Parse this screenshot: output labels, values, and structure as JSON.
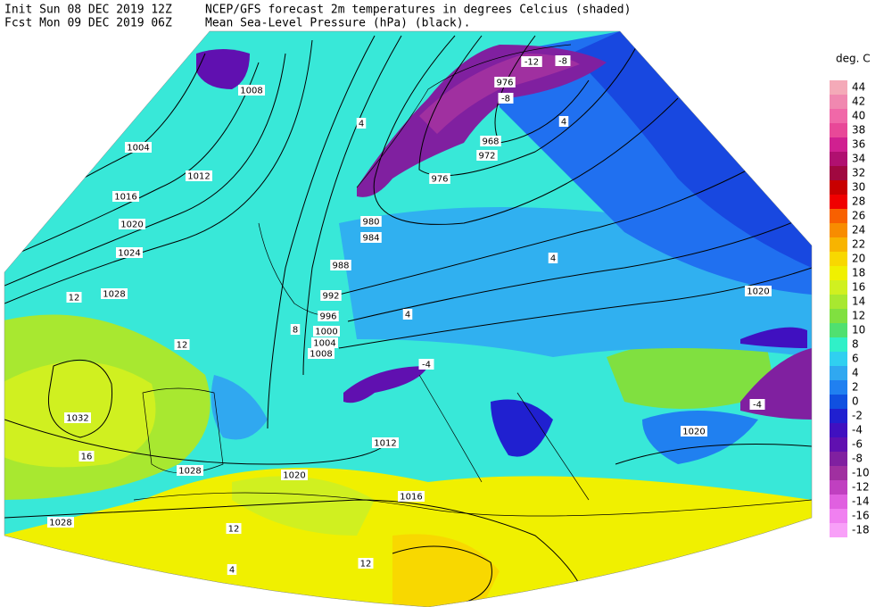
{
  "header": {
    "init": "Init  Sun 08 DEC 2019 12Z",
    "fcst": "Fcst Mon 09 DEC 2019 06Z",
    "title": "NCEP/GFS forecast 2m temperatures in degrees Celcius (shaded)",
    "subtitle": "Mean Sea-Level Pressure (hPa) (black)."
  },
  "legend": {
    "unit": "deg. C",
    "items": [
      {
        "label": "44",
        "color": "#f4aab8"
      },
      {
        "label": "42",
        "color": "#f088b0"
      },
      {
        "label": "40",
        "color": "#f068a8"
      },
      {
        "label": "38",
        "color": "#e84898"
      },
      {
        "label": "36",
        "color": "#d02090"
      },
      {
        "label": "34",
        "color": "#b01070"
      },
      {
        "label": "32",
        "color": "#a00840"
      },
      {
        "label": "30",
        "color": "#c80000"
      },
      {
        "label": "28",
        "color": "#f00000"
      },
      {
        "label": "26",
        "color": "#f86000"
      },
      {
        "label": "24",
        "color": "#f88c00"
      },
      {
        "label": "22",
        "color": "#f8b400"
      },
      {
        "label": "20",
        "color": "#f8d800"
      },
      {
        "label": "18",
        "color": "#f0f000"
      },
      {
        "label": "16",
        "color": "#d0f020"
      },
      {
        "label": "14",
        "color": "#a8e830"
      },
      {
        "label": "12",
        "color": "#80e040"
      },
      {
        "label": "10",
        "color": "#50e070"
      },
      {
        "label": "8",
        "color": "#30f0c8"
      },
      {
        "label": "6",
        "color": "#30d0f0"
      },
      {
        "label": "4",
        "color": "#30a8f0"
      },
      {
        "label": "2",
        "color": "#2080f0"
      },
      {
        "label": "0",
        "color": "#1050e0"
      },
      {
        "label": "-2",
        "color": "#2020d0"
      },
      {
        "label": "-4",
        "color": "#4010c0"
      },
      {
        "label": "-6",
        "color": "#6010b0"
      },
      {
        "label": "-8",
        "color": "#8020a0"
      },
      {
        "label": "-10",
        "color": "#a030a0"
      },
      {
        "label": "-12",
        "color": "#c040c0"
      },
      {
        "label": "-14",
        "color": "#e060e0"
      },
      {
        "label": "-16",
        "color": "#f080f0"
      },
      {
        "label": "-18",
        "color": "#f8a0f8"
      }
    ]
  },
  "map": {
    "labels": [
      "1008",
      "1004",
      "1012",
      "1016",
      "1020",
      "1024",
      "1028",
      "976",
      "968",
      "972",
      "976",
      "980",
      "984",
      "988",
      "992",
      "996",
      "1000",
      "1004",
      "1008",
      "1032",
      "1028",
      "1020",
      "1012",
      "1016",
      "1028",
      "1020",
      "1020",
      "12",
      "12",
      "4",
      "4",
      "4",
      "4",
      "-12",
      "-8",
      "-8",
      "-4",
      "-4",
      "8",
      "16",
      "12",
      "4",
      "12"
    ]
  }
}
